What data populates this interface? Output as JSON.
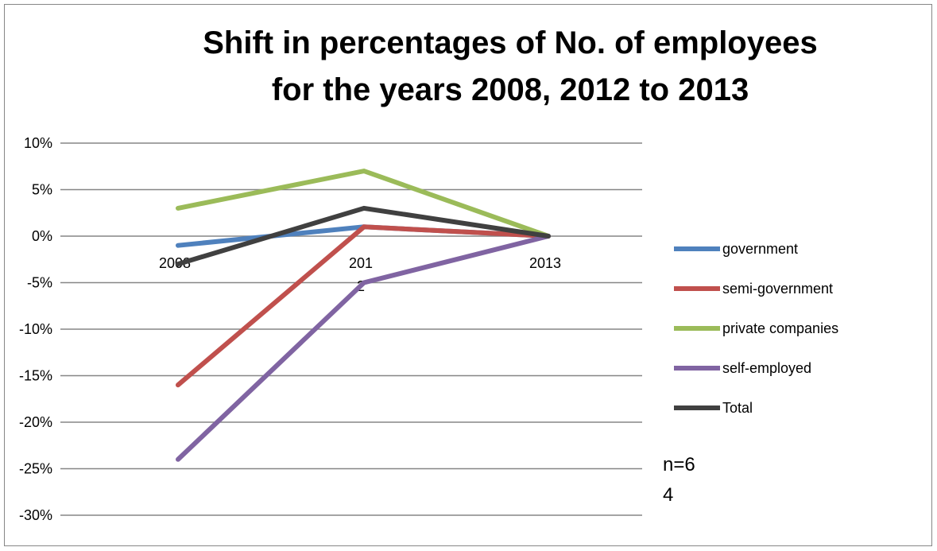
{
  "chart_data": {
    "type": "line",
    "title_lines": [
      "Shift in percentages of No. of employees",
      "for the years 2008, 2012 to 2013"
    ],
    "xlabel": "",
    "ylabel": "",
    "categories": [
      "2008",
      "2012",
      "2013"
    ],
    "category_tick_lines": [
      [
        "2008"
      ],
      [
        "201",
        "2"
      ],
      [
        "2013"
      ]
    ],
    "y_ticks": [
      "10%",
      "5%",
      "0%",
      "-5%",
      "-10%",
      "-15%",
      "-20%",
      "-25%",
      "-30%"
    ],
    "y_tick_values": [
      10,
      5,
      0,
      -5,
      -10,
      -15,
      -20,
      -25,
      -30
    ],
    "ylim": [
      -30,
      10
    ],
    "grid": true,
    "legend_position": "right",
    "series": [
      {
        "name": "government",
        "color": "#4f81bd",
        "values": [
          -1,
          1,
          0
        ]
      },
      {
        "name": "semi-government",
        "color": "#c0504d",
        "values": [
          -16,
          1,
          0
        ]
      },
      {
        "name": "private companies",
        "color": "#9bbb59",
        "values": [
          3,
          7,
          0
        ]
      },
      {
        "name": "self-employed",
        "color": "#8064a2",
        "values": [
          -24,
          -5,
          0
        ]
      },
      {
        "name": "Total",
        "color": "#404040",
        "values": [
          -3,
          3,
          0
        ]
      }
    ],
    "annotation_lines": [
      "n=6",
      "4"
    ]
  }
}
